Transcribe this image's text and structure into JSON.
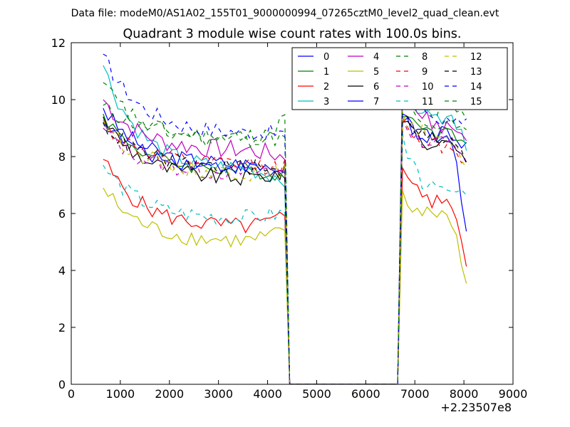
{
  "chart_data": {
    "type": "line",
    "suptitle": "Data file: modeM0/AS1A02_155T01_9000000994_07265cztM0_level2_quad_clean.evt",
    "title": "Quadrant 3 module wise count rates with 100.0s bins.",
    "xlabel": "",
    "ylabel": "",
    "x_offset_label": "+2.23507e8",
    "xlim": [
      0,
      9000
    ],
    "ylim": [
      0,
      12
    ],
    "xticks": [
      0,
      1000,
      2000,
      3000,
      4000,
      5000,
      6000,
      7000,
      8000,
      9000
    ],
    "xtick_labels": [
      "0",
      "1000",
      "2000",
      "3000",
      "4000",
      "5000",
      "6000",
      "7000",
      "8000",
      "9000"
    ],
    "yticks": [
      0,
      2,
      4,
      6,
      8,
      10,
      12
    ],
    "ytick_labels": [
      "0",
      "2",
      "4",
      "6",
      "8",
      "10",
      "12"
    ],
    "grid": false,
    "legend_position": "top-right",
    "legend_columns": 4,
    "x_segments": [
      {
        "start": 650,
        "step": 100,
        "count": 38
      },
      {
        "start": 6750,
        "step": 100,
        "count": 14
      }
    ],
    "gap_x": [
      4450,
      4550,
      6650
    ],
    "series": [
      {
        "name": "0",
        "color": "#0000ff",
        "dash": "solid",
        "seg1": {
          "start": 9.7,
          "plateau": 7.7,
          "end": 7.5,
          "amp": 0.3
        },
        "seg2": {
          "start": 9.2,
          "plateau": 8.8,
          "end": 8.3,
          "amp": 0.3
        }
      },
      {
        "name": "1",
        "color": "#008000",
        "dash": "solid",
        "seg1": {
          "start": 9.5,
          "plateau": 7.5,
          "end": 7.3,
          "amp": 0.25
        },
        "seg2": {
          "start": 9.4,
          "plateau": 8.8,
          "end": 8.2,
          "amp": 0.3
        }
      },
      {
        "name": "2",
        "color": "#ff0000",
        "dash": "solid",
        "seg1": {
          "start": 7.9,
          "plateau": 5.5,
          "end": 5.8,
          "amp": 0.3
        },
        "seg2": {
          "start": 7.6,
          "plateau": 6.3,
          "end": 4.4,
          "amp": 0.3
        }
      },
      {
        "name": "3",
        "color": "#00bfbf",
        "dash": "solid",
        "seg1": {
          "start": 11.2,
          "plateau": 7.5,
          "end": 7.2,
          "amp": 0.3
        },
        "seg2": {
          "start": 10.8,
          "plateau": 9.2,
          "end": 8.4,
          "amp": 0.3
        }
      },
      {
        "name": "4",
        "color": "#bf00bf",
        "dash": "solid",
        "seg1": {
          "start": 10.0,
          "plateau": 8.2,
          "end": 8.0,
          "amp": 0.35
        },
        "seg2": {
          "start": 10.9,
          "plateau": 9.0,
          "end": 8.7,
          "amp": 0.35
        }
      },
      {
        "name": "5",
        "color": "#bfbf00",
        "dash": "solid",
        "seg1": {
          "start": 6.9,
          "plateau": 5.0,
          "end": 5.3,
          "amp": 0.3
        },
        "seg2": {
          "start": 6.8,
          "plateau": 5.8,
          "end": 3.6,
          "amp": 0.3
        }
      },
      {
        "name": "6",
        "color": "#000000",
        "dash": "solid",
        "seg1": {
          "start": 9.4,
          "plateau": 7.2,
          "end": 7.4,
          "amp": 0.3
        },
        "seg2": {
          "start": 9.2,
          "plateau": 8.4,
          "end": 7.8,
          "amp": 0.3
        }
      },
      {
        "name": "7",
        "color": "#0000ff",
        "dash": "solid",
        "seg1": {
          "start": 9.3,
          "plateau": 7.6,
          "end": 7.5,
          "amp": 0.25
        },
        "seg2": {
          "start": 9.5,
          "plateau": 8.6,
          "end": 5.3,
          "amp": 0.3
        }
      },
      {
        "name": "8",
        "color": "#008000",
        "dash": "dashed",
        "seg1": {
          "start": 9.8,
          "plateau": 8.7,
          "end": 8.6,
          "amp": 0.3
        },
        "seg2": {
          "start": 10.3,
          "plateau": 9.1,
          "end": 8.8,
          "amp": 0.3
        }
      },
      {
        "name": "9",
        "color": "#ff0000",
        "dash": "dashed",
        "seg1": {
          "start": 9.2,
          "plateau": 7.7,
          "end": 7.6,
          "amp": 0.3
        },
        "seg2": {
          "start": 9.4,
          "plateau": 8.3,
          "end": 7.6,
          "amp": 0.3
        }
      },
      {
        "name": "10",
        "color": "#bf00bf",
        "dash": "dashed",
        "seg1": {
          "start": 9.0,
          "plateau": 7.4,
          "end": 7.6,
          "amp": 0.3
        },
        "seg2": {
          "start": 9.3,
          "plateau": 8.4,
          "end": 7.5,
          "amp": 0.3
        }
      },
      {
        "name": "11",
        "color": "#00bfbf",
        "dash": "dashed",
        "seg1": {
          "start": 7.7,
          "plateau": 5.8,
          "end": 6.0,
          "amp": 0.3
        },
        "seg2": {
          "start": 8.8,
          "plateau": 6.7,
          "end": 6.9,
          "amp": 0.3
        }
      },
      {
        "name": "12",
        "color": "#bfbf00",
        "dash": "dashed",
        "seg1": {
          "start": 9.3,
          "plateau": 7.4,
          "end": 7.5,
          "amp": 0.3
        },
        "seg2": {
          "start": 9.6,
          "plateau": 8.6,
          "end": 7.8,
          "amp": 0.3
        }
      },
      {
        "name": "13",
        "color": "#000000",
        "dash": "dashed",
        "seg1": {
          "start": 9.2,
          "plateau": 7.6,
          "end": 7.4,
          "amp": 0.3
        },
        "seg2": {
          "start": 9.5,
          "plateau": 8.5,
          "end": 7.9,
          "amp": 0.3
        }
      },
      {
        "name": "14",
        "color": "#0000ff",
        "dash": "dashed",
        "seg1": {
          "start": 11.6,
          "plateau": 8.8,
          "end": 8.8,
          "amp": 0.3
        },
        "seg2": {
          "start": 10.4,
          "plateau": 9.3,
          "end": 9.4,
          "amp": 0.35
        }
      },
      {
        "name": "15",
        "color": "#008000",
        "dash": "dashed",
        "seg1": {
          "start": 10.6,
          "plateau": 8.5,
          "end": 9.2,
          "amp": 0.3
        },
        "seg2": {
          "start": 10.8,
          "plateau": 9.6,
          "end": 9.3,
          "amp": 0.35
        }
      }
    ]
  }
}
